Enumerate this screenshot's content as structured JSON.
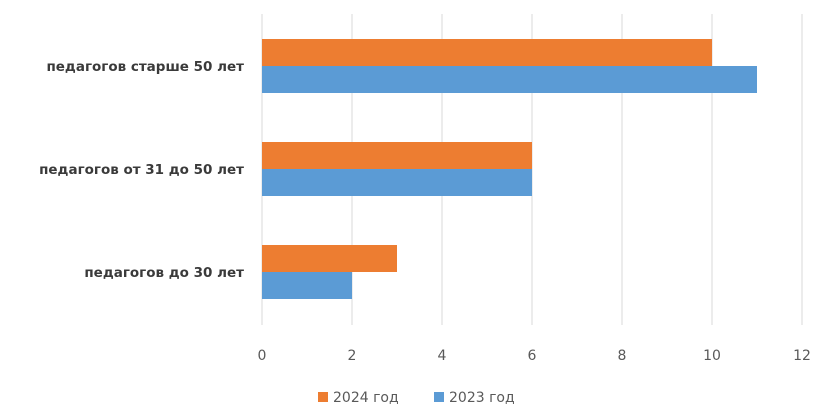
{
  "chart_data": {
    "type": "bar",
    "orientation": "horizontal",
    "categories": [
      "педагогов старше 50 лет",
      "педагогов от 31 до 50 лет",
      "педагогов до 30 лет"
    ],
    "series": [
      {
        "name": "2024 год",
        "color": "#ED7D31",
        "values": [
          10,
          6,
          3
        ]
      },
      {
        "name": "2023 год",
        "color": "#5B9BD5",
        "values": [
          11,
          6,
          2
        ]
      }
    ],
    "xlim": [
      0,
      12
    ],
    "xticks": [
      0,
      2,
      4,
      6,
      8,
      10,
      12
    ],
    "grid": true,
    "legend_position": "bottom"
  }
}
